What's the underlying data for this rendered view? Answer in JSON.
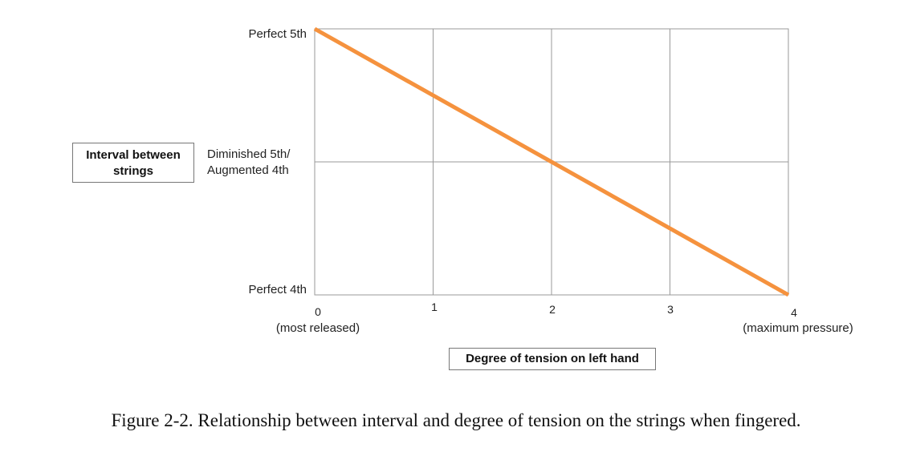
{
  "chart_data": {
    "type": "line",
    "x": [
      0,
      4
    ],
    "series": [
      {
        "values": [
          2,
          0
        ]
      }
    ],
    "x_ticks": [
      "0",
      "1",
      "2",
      "3",
      "4"
    ],
    "x_tick_sublabels": {
      "0": "(most released)",
      "4": "(maximum pressure)"
    },
    "y_ticks": [
      "Perfect 4th",
      "Diminished 5th/\nAugmented 4th",
      "Perfect 5th"
    ],
    "y_tick_lines": [
      [
        "Perfect 4th"
      ],
      [
        "Diminished 5th/",
        "Augmented 4th"
      ],
      [
        "Perfect 5th"
      ]
    ],
    "xlabel": "Degree of tension on left hand",
    "ylabel": "Interval between strings",
    "ylabel_lines": [
      "Interval between",
      "strings"
    ],
    "xlim": [
      0,
      4
    ],
    "ylim": [
      0,
      2
    ],
    "grid": true,
    "line_color": "#f5923e",
    "grid_color": "#9a9a9a"
  },
  "caption": "Figure 2-2. Relationship between interval and degree of tension on the strings when fingered."
}
